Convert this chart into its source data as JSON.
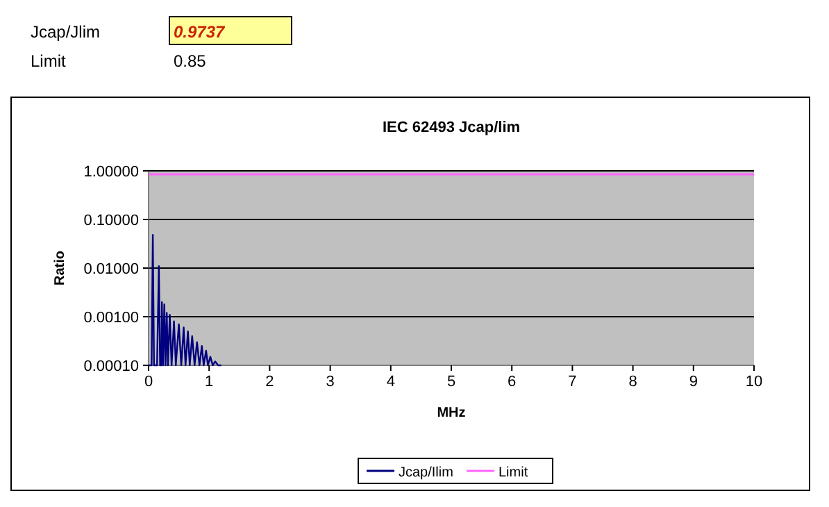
{
  "chart_data": {
    "type": "line",
    "title": "IEC 62493 Jcap/lim",
    "xlabel": "MHz",
    "ylabel": "Ratio",
    "annotations": [
      "Jcap/Jlim",
      "0.9737",
      "Limit",
      "0.85"
    ],
    "xlim": [
      0,
      10
    ],
    "xticks": [
      0,
      1,
      2,
      3,
      4,
      5,
      6,
      7,
      8,
      9,
      10
    ],
    "ylim": [
      0.0001,
      1
    ],
    "yticks": [
      {
        "value": 0.0001,
        "label": "0.00010"
      },
      {
        "value": 0.001,
        "label": "0.00100"
      },
      {
        "value": 0.01,
        "label": "0.01000"
      },
      {
        "value": 0.1,
        "label": "0.10000"
      },
      {
        "value": 1,
        "label": "1.00000"
      }
    ],
    "log": "y",
    "grid": "y",
    "legend": "bottom",
    "marker": "none",
    "line_style": "solid",
    "series": [
      {
        "name": "Jcap/Ilim",
        "color": "#000080",
        "x": [
          0,
          0.05,
          0.07,
          0.09,
          0.12,
          0.14,
          0.17,
          0.19,
          0.21,
          0.22,
          0.24,
          0.26,
          0.28,
          0.3,
          0.32,
          0.35,
          0.38,
          0.42,
          0.45,
          0.5,
          0.54,
          0.58,
          0.61,
          0.65,
          0.68,
          0.72,
          0.76,
          0.8,
          0.84,
          0.88,
          0.91,
          0.95,
          0.98,
          1.02,
          1.06,
          1.1,
          1.15,
          1.2
        ],
        "values": [
          0.0001,
          0.0001,
          0.048,
          0.0001,
          0.0001,
          0.0001,
          0.011,
          0.0001,
          0.0001,
          0.002,
          0.0001,
          0.0018,
          0.0001,
          0.0012,
          0.0001,
          0.0011,
          0.0001,
          0.0008,
          0.0001,
          0.0007,
          0.0001,
          0.0006,
          0.0001,
          0.0005,
          0.0001,
          0.0004,
          0.0001,
          0.0003,
          0.0001,
          0.00025,
          0.0001,
          0.0002,
          0.0001,
          0.00015,
          0.0001,
          0.00012,
          0.0001,
          0.0001
        ]
      },
      {
        "name": "Limit",
        "color": "#ff66ff",
        "x": [
          0,
          10
        ],
        "values": [
          0.85,
          0.85
        ]
      }
    ]
  }
}
